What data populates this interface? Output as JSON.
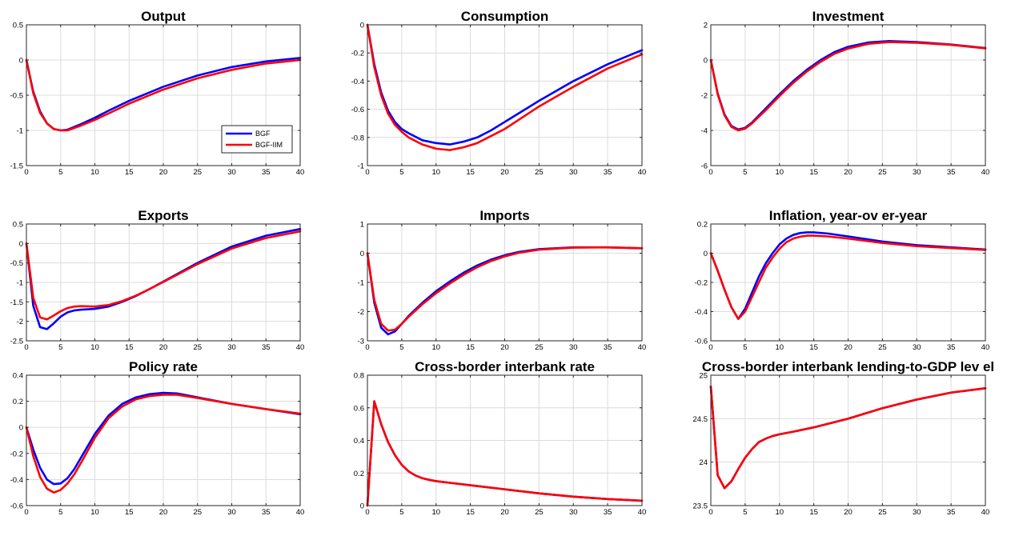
{
  "chart_data": [
    {
      "type": "line",
      "title": "Output",
      "xlim": [
        0,
        40
      ],
      "ylim": [
        -1.5,
        0.5
      ],
      "xticks": [
        0,
        5,
        10,
        15,
        20,
        25,
        30,
        35,
        40
      ],
      "yticks": [
        -1.5,
        -1,
        -0.5,
        0,
        0.5
      ],
      "legend": {
        "position": "inside-right",
        "entries": [
          "BGF",
          "BGF-IIM"
        ]
      },
      "series": [
        {
          "name": "BGF",
          "color": "#0000ff",
          "x": [
            0,
            1,
            2,
            3,
            4,
            5,
            6,
            8,
            10,
            12,
            15,
            20,
            25,
            30,
            35,
            40
          ],
          "y": [
            0,
            -0.45,
            -0.73,
            -0.9,
            -0.98,
            -1.0,
            -0.99,
            -0.91,
            -0.82,
            -0.72,
            -0.58,
            -0.38,
            -0.22,
            -0.1,
            -0.02,
            0.03
          ]
        },
        {
          "name": "BGF-IIM",
          "color": "#ff0000",
          "x": [
            0,
            1,
            2,
            3,
            4,
            5,
            6,
            8,
            10,
            12,
            15,
            20,
            25,
            30,
            35,
            40
          ],
          "y": [
            0,
            -0.47,
            -0.75,
            -0.9,
            -0.98,
            -1.0,
            -1.0,
            -0.93,
            -0.85,
            -0.76,
            -0.62,
            -0.42,
            -0.26,
            -0.14,
            -0.05,
            0.0
          ]
        }
      ]
    },
    {
      "type": "line",
      "title": "Consumption",
      "xlim": [
        0,
        40
      ],
      "ylim": [
        -1,
        0
      ],
      "xticks": [
        0,
        5,
        10,
        15,
        20,
        25,
        30,
        35,
        40
      ],
      "yticks": [
        -1,
        -0.8,
        -0.6,
        -0.4,
        -0.2,
        0
      ],
      "series": [
        {
          "name": "BGF",
          "color": "#0000ff",
          "x": [
            0,
            1,
            2,
            3,
            4,
            5,
            6,
            8,
            10,
            12,
            14,
            16,
            18,
            20,
            25,
            30,
            35,
            40
          ],
          "y": [
            0,
            -0.28,
            -0.48,
            -0.61,
            -0.69,
            -0.74,
            -0.77,
            -0.82,
            -0.84,
            -0.85,
            -0.83,
            -0.8,
            -0.75,
            -0.69,
            -0.54,
            -0.4,
            -0.28,
            -0.18
          ]
        },
        {
          "name": "BGF-IIM",
          "color": "#ff0000",
          "x": [
            0,
            1,
            2,
            3,
            4,
            5,
            6,
            8,
            10,
            12,
            14,
            16,
            18,
            20,
            25,
            30,
            35,
            40
          ],
          "y": [
            0,
            -0.3,
            -0.5,
            -0.63,
            -0.71,
            -0.76,
            -0.8,
            -0.85,
            -0.88,
            -0.89,
            -0.87,
            -0.84,
            -0.79,
            -0.74,
            -0.58,
            -0.44,
            -0.31,
            -0.21
          ]
        }
      ]
    },
    {
      "type": "line",
      "title": "Investment",
      "xlim": [
        0,
        40
      ],
      "ylim": [
        -6,
        2
      ],
      "xticks": [
        0,
        5,
        10,
        15,
        20,
        25,
        30,
        35,
        40
      ],
      "yticks": [
        -6,
        -4,
        -2,
        0,
        2
      ],
      "series": [
        {
          "name": "BGF",
          "color": "#0000ff",
          "x": [
            0,
            1,
            2,
            3,
            4,
            5,
            6,
            8,
            10,
            12,
            14,
            16,
            18,
            20,
            23,
            26,
            30,
            35,
            40
          ],
          "y": [
            0,
            -1.9,
            -3.1,
            -3.75,
            -3.95,
            -3.85,
            -3.55,
            -2.75,
            -1.95,
            -1.2,
            -0.55,
            0.0,
            0.45,
            0.75,
            1.0,
            1.08,
            1.02,
            0.88,
            0.68
          ]
        },
        {
          "name": "BGF-IIM",
          "color": "#ff0000",
          "x": [
            0,
            1,
            2,
            3,
            4,
            5,
            6,
            8,
            10,
            12,
            14,
            16,
            18,
            20,
            23,
            26,
            30,
            35,
            40
          ],
          "y": [
            0,
            -1.95,
            -3.15,
            -3.8,
            -4.0,
            -3.9,
            -3.6,
            -2.85,
            -2.05,
            -1.3,
            -0.65,
            -0.1,
            0.35,
            0.65,
            0.92,
            1.02,
            0.98,
            0.86,
            0.66
          ]
        }
      ]
    },
    {
      "type": "line",
      "title": "Exports",
      "xlim": [
        0,
        40
      ],
      "ylim": [
        -2.5,
        0.5
      ],
      "xticks": [
        0,
        5,
        10,
        15,
        20,
        25,
        30,
        35,
        40
      ],
      "yticks": [
        -2.5,
        -2,
        -1.5,
        -1,
        -0.5,
        0,
        0.5
      ],
      "series": [
        {
          "name": "BGF",
          "color": "#0000ff",
          "x": [
            0,
            1,
            2,
            3,
            4,
            5,
            6,
            7,
            8,
            10,
            12,
            14,
            16,
            18,
            20,
            25,
            30,
            35,
            40
          ],
          "y": [
            0,
            -1.6,
            -2.15,
            -2.2,
            -2.05,
            -1.88,
            -1.77,
            -1.72,
            -1.7,
            -1.68,
            -1.62,
            -1.5,
            -1.35,
            -1.17,
            -0.98,
            -0.5,
            -0.08,
            0.2,
            0.37
          ]
        },
        {
          "name": "BGF-IIM",
          "color": "#ff0000",
          "x": [
            0,
            1,
            2,
            3,
            4,
            5,
            6,
            7,
            8,
            10,
            12,
            14,
            16,
            18,
            20,
            25,
            30,
            35,
            40
          ],
          "y": [
            0,
            -1.4,
            -1.9,
            -1.95,
            -1.85,
            -1.74,
            -1.66,
            -1.62,
            -1.61,
            -1.62,
            -1.58,
            -1.48,
            -1.34,
            -1.17,
            -0.99,
            -0.53,
            -0.13,
            0.14,
            0.31
          ]
        }
      ]
    },
    {
      "type": "line",
      "title": "Imports",
      "xlim": [
        0,
        40
      ],
      "ylim": [
        -3,
        1
      ],
      "xticks": [
        0,
        5,
        10,
        15,
        20,
        25,
        30,
        35,
        40
      ],
      "yticks": [
        -3,
        -2,
        -1,
        0,
        1
      ],
      "series": [
        {
          "name": "BGF",
          "color": "#0000ff",
          "x": [
            0,
            1,
            2,
            3,
            4,
            5,
            6,
            8,
            10,
            12,
            14,
            16,
            18,
            20,
            22,
            25,
            30,
            35,
            40
          ],
          "y": [
            0,
            -1.7,
            -2.55,
            -2.78,
            -2.68,
            -2.42,
            -2.15,
            -1.7,
            -1.3,
            -0.97,
            -0.67,
            -0.42,
            -0.22,
            -0.07,
            0.04,
            0.14,
            0.2,
            0.2,
            0.17
          ]
        },
        {
          "name": "BGF-IIM",
          "color": "#ff0000",
          "x": [
            0,
            1,
            2,
            3,
            4,
            5,
            6,
            8,
            10,
            12,
            14,
            16,
            18,
            20,
            22,
            25,
            30,
            35,
            40
          ],
          "y": [
            0,
            -1.6,
            -2.42,
            -2.65,
            -2.62,
            -2.42,
            -2.18,
            -1.75,
            -1.37,
            -1.04,
            -0.74,
            -0.48,
            -0.27,
            -0.11,
            0.01,
            0.12,
            0.19,
            0.2,
            0.17
          ]
        }
      ]
    },
    {
      "type": "line",
      "title": "Inflation, year-ov er-year",
      "xlim": [
        0,
        40
      ],
      "ylim": [
        -0.6,
        0.2
      ],
      "xticks": [
        0,
        5,
        10,
        15,
        20,
        25,
        30,
        35,
        40
      ],
      "yticks": [
        -0.6,
        -0.4,
        -0.2,
        0,
        0.2
      ],
      "series": [
        {
          "name": "BGF",
          "color": "#0000ff",
          "x": [
            0,
            1,
            2,
            3,
            4,
            5,
            6,
            7,
            8,
            9,
            10,
            11,
            12,
            13,
            14,
            15,
            17,
            20,
            25,
            30,
            35,
            40
          ],
          "y": [
            0,
            -0.12,
            -0.25,
            -0.37,
            -0.45,
            -0.38,
            -0.27,
            -0.16,
            -0.07,
            0.0,
            0.06,
            0.1,
            0.125,
            0.138,
            0.143,
            0.143,
            0.135,
            0.115,
            0.08,
            0.055,
            0.04,
            0.025
          ]
        },
        {
          "name": "BGF-IIM",
          "color": "#ff0000",
          "x": [
            0,
            1,
            2,
            3,
            4,
            5,
            6,
            7,
            8,
            9,
            10,
            11,
            12,
            13,
            14,
            15,
            17,
            20,
            25,
            30,
            35,
            40
          ],
          "y": [
            0,
            -0.12,
            -0.25,
            -0.37,
            -0.45,
            -0.4,
            -0.3,
            -0.2,
            -0.1,
            -0.03,
            0.03,
            0.075,
            0.1,
            0.113,
            0.12,
            0.12,
            0.115,
            0.1,
            0.07,
            0.048,
            0.035,
            0.022
          ]
        }
      ]
    },
    {
      "type": "line",
      "title": "Policy rate",
      "xlim": [
        0,
        40
      ],
      "ylim": [
        -0.6,
        0.4
      ],
      "xticks": [
        0,
        5,
        10,
        15,
        20,
        25,
        30,
        35,
        40
      ],
      "yticks": [
        -0.6,
        -0.4,
        -0.2,
        0,
        0.2,
        0.4
      ],
      "series": [
        {
          "name": "BGF",
          "color": "#0000ff",
          "x": [
            0,
            1,
            2,
            3,
            4,
            5,
            6,
            7,
            8,
            10,
            12,
            14,
            16,
            18,
            20,
            22,
            25,
            30,
            35,
            40
          ],
          "y": [
            0,
            -0.17,
            -0.31,
            -0.4,
            -0.435,
            -0.43,
            -0.39,
            -0.32,
            -0.23,
            -0.05,
            0.09,
            0.18,
            0.23,
            0.255,
            0.265,
            0.26,
            0.23,
            0.18,
            0.14,
            0.1
          ]
        },
        {
          "name": "BGF-IIM",
          "color": "#ff0000",
          "x": [
            0,
            1,
            2,
            3,
            4,
            5,
            6,
            7,
            8,
            10,
            12,
            14,
            16,
            18,
            20,
            22,
            25,
            30,
            35,
            40
          ],
          "y": [
            0,
            -0.22,
            -0.38,
            -0.47,
            -0.5,
            -0.48,
            -0.43,
            -0.36,
            -0.27,
            -0.08,
            0.07,
            0.16,
            0.215,
            0.24,
            0.25,
            0.25,
            0.225,
            0.18,
            0.14,
            0.105
          ]
        }
      ]
    },
    {
      "type": "line",
      "title": "Cross-border interbank rate",
      "xlim": [
        0,
        40
      ],
      "ylim": [
        0,
        0.8
      ],
      "xticks": [
        0,
        5,
        10,
        15,
        20,
        25,
        30,
        35,
        40
      ],
      "yticks": [
        0,
        0.2,
        0.4,
        0.6,
        0.8
      ],
      "series": [
        {
          "name": "BGF",
          "color": "#0000ff",
          "x": [
            0,
            1,
            2,
            3,
            4,
            5,
            6,
            7,
            8,
            9,
            10,
            12,
            15,
            20,
            25,
            30,
            35,
            40
          ],
          "y": [
            0,
            0.64,
            0.5,
            0.39,
            0.31,
            0.25,
            0.21,
            0.185,
            0.168,
            0.158,
            0.15,
            0.14,
            0.125,
            0.1,
            0.075,
            0.055,
            0.04,
            0.03
          ]
        },
        {
          "name": "BGF-IIM",
          "color": "#ff0000",
          "x": [
            0,
            1,
            2,
            3,
            4,
            5,
            6,
            7,
            8,
            9,
            10,
            12,
            15,
            20,
            25,
            30,
            35,
            40
          ],
          "y": [
            0,
            0.64,
            0.5,
            0.39,
            0.31,
            0.25,
            0.21,
            0.185,
            0.168,
            0.158,
            0.15,
            0.14,
            0.125,
            0.1,
            0.075,
            0.055,
            0.04,
            0.03
          ]
        }
      ]
    },
    {
      "type": "line",
      "title": "Cross-border interbank lending-to-GDP lev el",
      "xlim": [
        0,
        40
      ],
      "ylim": [
        23.5,
        25
      ],
      "xticks": [
        0,
        5,
        10,
        15,
        20,
        25,
        30,
        35,
        40
      ],
      "yticks": [
        23.5,
        24,
        24.5,
        25
      ],
      "series": [
        {
          "name": "BGF",
          "color": "#0000ff",
          "x": [
            0,
            1,
            2,
            3,
            4,
            5,
            6,
            7,
            8,
            9,
            10,
            12,
            15,
            20,
            25,
            30,
            35,
            40
          ],
          "y": [
            24.87,
            23.85,
            23.7,
            23.78,
            23.92,
            24.05,
            24.15,
            24.23,
            24.27,
            24.3,
            24.32,
            24.35,
            24.4,
            24.5,
            24.62,
            24.72,
            24.8,
            24.85
          ]
        },
        {
          "name": "BGF-IIM",
          "color": "#ff0000",
          "x": [
            0,
            1,
            2,
            3,
            4,
            5,
            6,
            7,
            8,
            9,
            10,
            12,
            15,
            20,
            25,
            30,
            35,
            40
          ],
          "y": [
            24.87,
            23.85,
            23.7,
            23.78,
            23.92,
            24.05,
            24.15,
            24.23,
            24.27,
            24.3,
            24.32,
            24.35,
            24.4,
            24.5,
            24.62,
            24.72,
            24.8,
            24.85
          ]
        }
      ]
    }
  ]
}
